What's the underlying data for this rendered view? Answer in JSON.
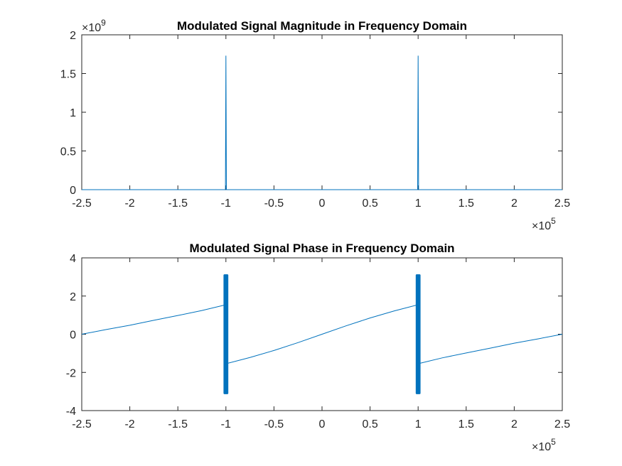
{
  "chart_data": [
    {
      "type": "line",
      "title": "Modulated Signal Magnitude in Frequency Domain",
      "xlabel": "",
      "ylabel": "",
      "xlim": [
        -250000,
        250000
      ],
      "ylim": [
        0,
        2000000000
      ],
      "x_ticks": [
        -250000,
        -200000,
        -150000,
        -100000,
        -50000,
        0,
        50000,
        100000,
        150000,
        200000,
        250000
      ],
      "x_tick_labels": [
        "-2.5",
        "-2",
        "-1.5",
        "-1",
        "-0.5",
        "0",
        "0.5",
        "1",
        "1.5",
        "2",
        "2.5"
      ],
      "x_multiplier": {
        "base": "×10",
        "exp": "5"
      },
      "y_ticks": [
        0,
        500000000,
        1000000000,
        1500000000,
        2000000000
      ],
      "y_tick_labels": [
        "0",
        "0.5",
        "1",
        "1.5",
        "2"
      ],
      "y_multiplier": {
        "base": "×10",
        "exp": "9"
      },
      "series_color": "#0072BD",
      "series": [
        {
          "x": [
            -250000,
            -100500,
            -100000,
            -99500,
            99500,
            100000,
            100500,
            250000
          ],
          "y": [
            0,
            0,
            1730000000,
            0,
            0,
            1730000000,
            0,
            0
          ]
        }
      ]
    },
    {
      "type": "line",
      "title": "Modulated Signal Phase in Frequency Domain",
      "xlabel": "",
      "ylabel": "",
      "xlim": [
        -250000,
        250000
      ],
      "ylim": [
        -4,
        4
      ],
      "x_ticks": [
        -250000,
        -200000,
        -150000,
        -100000,
        -50000,
        0,
        50000,
        100000,
        150000,
        200000,
        250000
      ],
      "x_tick_labels": [
        "-2.5",
        "-2",
        "-1.5",
        "-1",
        "-0.5",
        "0",
        "0.5",
        "1",
        "1.5",
        "2",
        "2.5"
      ],
      "x_multiplier": {
        "base": "×10",
        "exp": "5"
      },
      "y_ticks": [
        -4,
        -2,
        0,
        2,
        4
      ],
      "y_tick_labels": [
        "-4",
        "-2",
        "0",
        "2",
        "4"
      ],
      "series_color": "#0072BD",
      "series": [
        {
          "x": [
            -250000,
            -225000,
            -200000,
            -175000,
            -150000,
            -125000,
            -102000,
            -98000,
            -75000,
            -50000,
            -25000,
            0,
            25000,
            50000,
            75000,
            98000,
            102000,
            125000,
            150000,
            175000,
            200000,
            225000,
            250000
          ],
          "y": [
            0,
            0.24,
            0.47,
            0.73,
            0.98,
            1.24,
            1.52,
            -1.52,
            -1.22,
            -0.85,
            -0.44,
            0,
            0.44,
            0.85,
            1.22,
            1.52,
            -1.52,
            -1.24,
            -0.98,
            -0.73,
            -0.47,
            -0.24,
            0
          ]
        }
      ],
      "bands": [
        {
          "x_from": -102500,
          "x_to": -97500,
          "y_from": -3.14,
          "y_to": 3.14
        },
        {
          "x_from": 97500,
          "x_to": 102500,
          "y_from": -3.14,
          "y_to": 3.14
        }
      ]
    }
  ]
}
